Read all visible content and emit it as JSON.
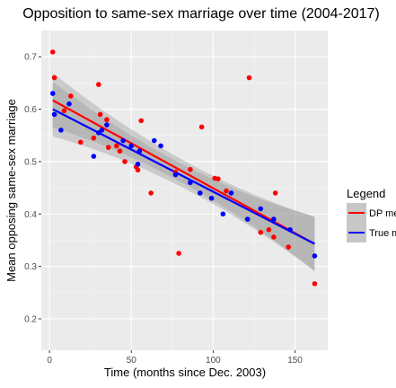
{
  "chart_data": {
    "type": "scatter",
    "title": "Opposition to same-sex marriage over time (2004-2017)",
    "xlabel": "Time (months since Dec. 2003)",
    "ylabel": "Mean opposing same-sex marriage",
    "xlim": [
      -5,
      170
    ],
    "ylim": [
      0.14,
      0.75
    ],
    "x_ticks": [
      0,
      50,
      100,
      150
    ],
    "y_ticks": [
      0.2,
      0.3,
      0.4,
      0.5,
      0.6,
      0.7
    ],
    "y_tick_labels": [
      "0.2",
      "0.3",
      "0.4",
      "0.5",
      "0.6",
      "0.7"
    ],
    "grid": true,
    "background": "#ebebeb",
    "legend": {
      "title": "Legend",
      "placement": "right",
      "entries": [
        "DP me",
        "True m"
      ]
    },
    "series": [
      {
        "name": "DP me",
        "color": "#ff0000",
        "points": [
          [
            2,
            0.709
          ],
          [
            3,
            0.66
          ],
          [
            9,
            0.597
          ],
          [
            13,
            0.625
          ],
          [
            19,
            0.537
          ],
          [
            27,
            0.545
          ],
          [
            30,
            0.647
          ],
          [
            31,
            0.59
          ],
          [
            35,
            0.58
          ],
          [
            36,
            0.527
          ],
          [
            41,
            0.53
          ],
          [
            43,
            0.52
          ],
          [
            46,
            0.5
          ],
          [
            53,
            0.49
          ],
          [
            54,
            0.484
          ],
          [
            56,
            0.578
          ],
          [
            62,
            0.44
          ],
          [
            77,
            0.48
          ],
          [
            79,
            0.325
          ],
          [
            86,
            0.485
          ],
          [
            93,
            0.566
          ],
          [
            101,
            0.468
          ],
          [
            103,
            0.467
          ],
          [
            108,
            0.444
          ],
          [
            122,
            0.66
          ],
          [
            129,
            0.365
          ],
          [
            134,
            0.37
          ],
          [
            137,
            0.356
          ],
          [
            138,
            0.44
          ],
          [
            146,
            0.337
          ],
          [
            162,
            0.267
          ]
        ],
        "fit": {
          "x": [
            2,
            162
          ],
          "y": [
            0.617,
            0.343
          ]
        }
      },
      {
        "name": "True m",
        "color": "#0000ff",
        "points": [
          [
            2,
            0.63
          ],
          [
            3,
            0.59
          ],
          [
            7,
            0.56
          ],
          [
            12,
            0.61
          ],
          [
            27,
            0.51
          ],
          [
            30,
            0.555
          ],
          [
            32,
            0.56
          ],
          [
            35,
            0.57
          ],
          [
            45,
            0.54
          ],
          [
            50,
            0.53
          ],
          [
            54,
            0.495
          ],
          [
            55,
            0.52
          ],
          [
            64,
            0.54
          ],
          [
            68,
            0.53
          ],
          [
            77,
            0.475
          ],
          [
            86,
            0.46
          ],
          [
            92,
            0.44
          ],
          [
            99,
            0.43
          ],
          [
            106,
            0.4
          ],
          [
            111,
            0.44
          ],
          [
            121,
            0.39
          ],
          [
            129,
            0.41
          ],
          [
            137,
            0.39
          ],
          [
            147,
            0.37
          ],
          [
            162,
            0.32
          ]
        ],
        "fit": {
          "x": [
            2,
            162
          ],
          "y": [
            0.6,
            0.343
          ]
        }
      }
    ],
    "confidence_band_color": "#999999"
  }
}
